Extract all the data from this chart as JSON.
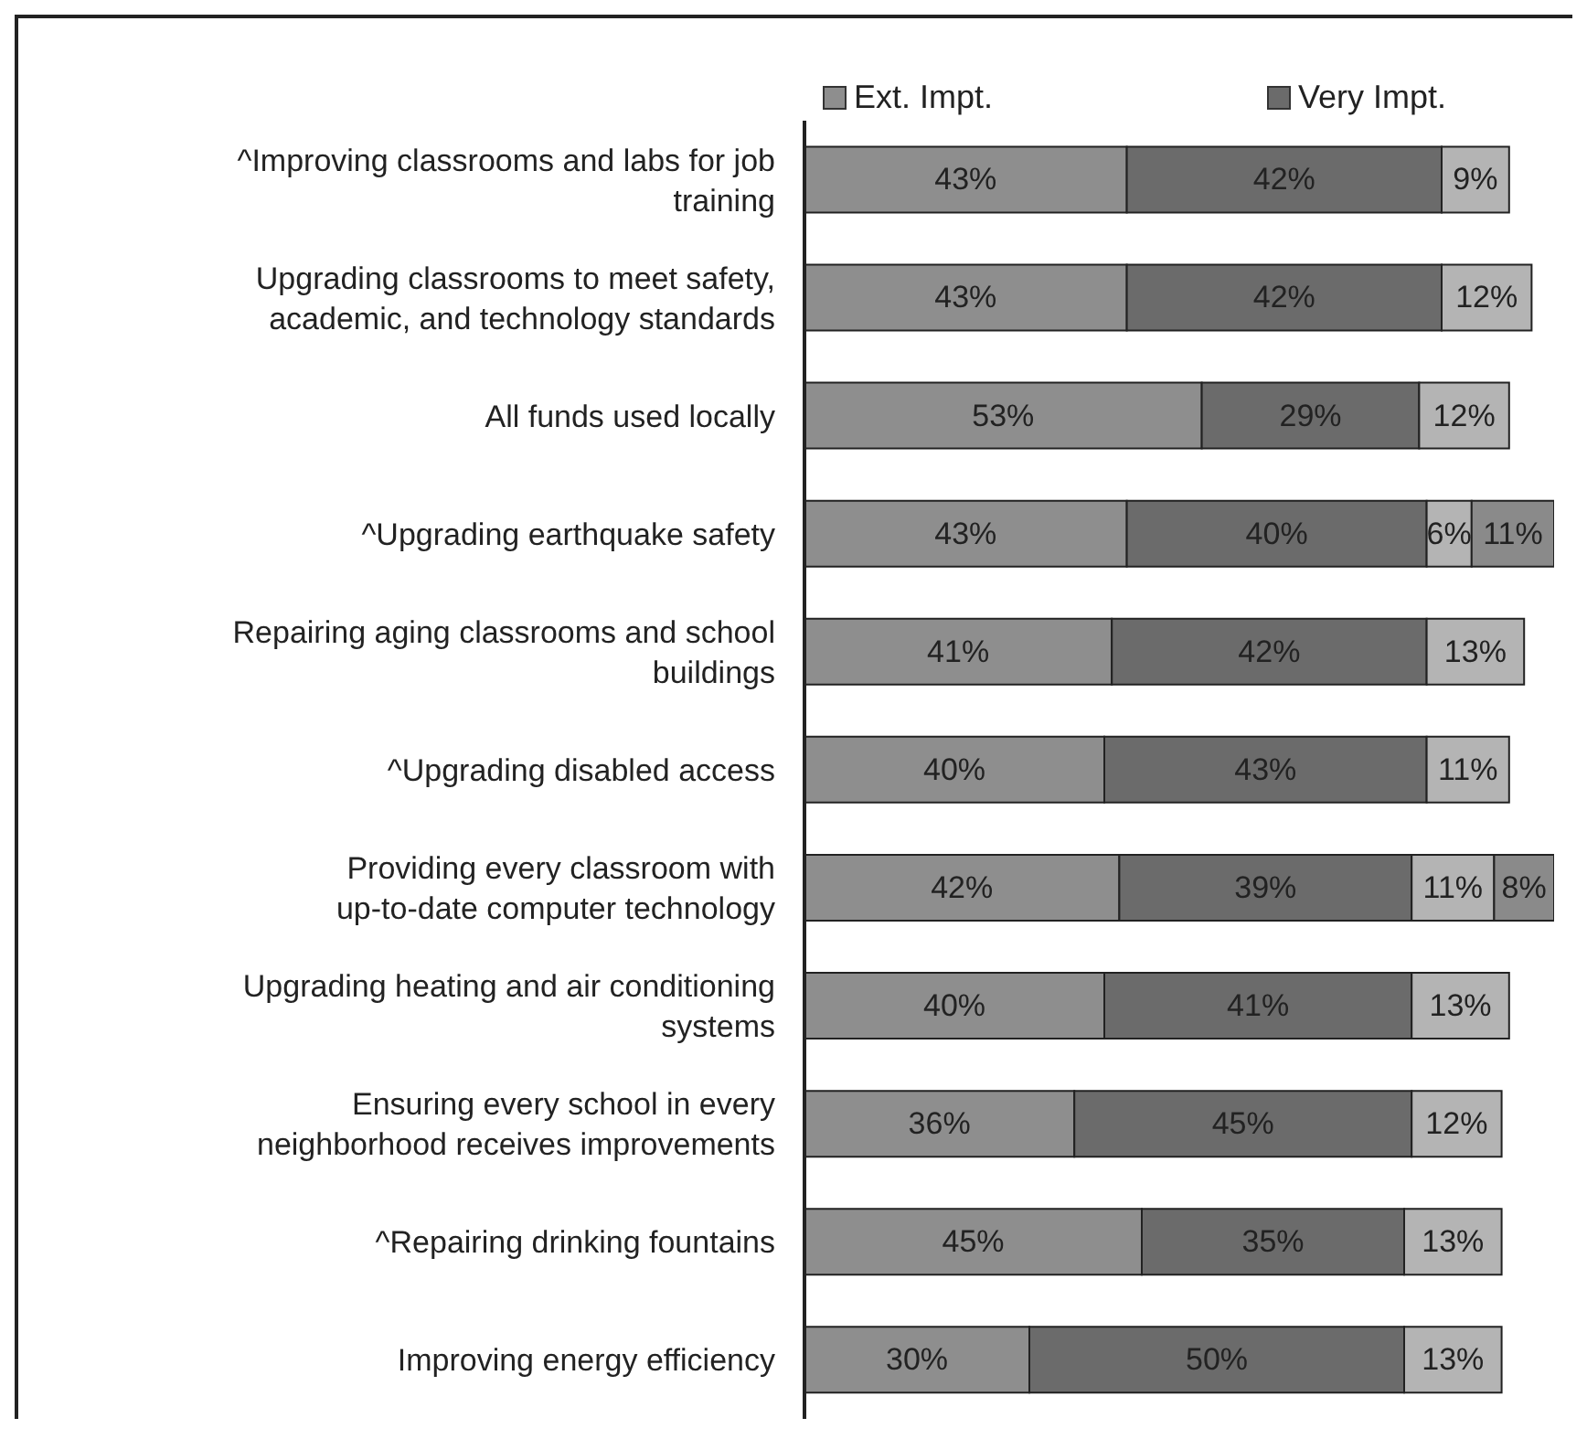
{
  "chart_data": {
    "type": "bar",
    "orientation": "horizontal",
    "stacked": true,
    "legend": "top",
    "tick_labels": "y",
    "xlim": [
      0,
      100
    ],
    "categories": [
      "^Improving classrooms and labs for job training",
      "Upgrading classrooms to meet safety, academic, and technology standards",
      "All funds used locally",
      "^Upgrading earthquake safety",
      "Repairing aging classrooms and school buildings",
      "^Upgrading disabled access",
      "Providing every classroom with up-to-date computer technology",
      "Upgrading heating and air conditioning systems",
      "Ensuring every school in every neighborhood receives improvements",
      "^Repairing drinking fountains",
      "Improving energy efficiency"
    ],
    "series": [
      {
        "name": "Ext. Impt.",
        "color": "#8e8e8e",
        "values": [
          43,
          43,
          53,
          43,
          41,
          40,
          42,
          40,
          36,
          45,
          30
        ],
        "value_labels": [
          "43%",
          "43%",
          "53%",
          "43%",
          "41%",
          "40%",
          "42%",
          "40%",
          "36%",
          "45%",
          "30%"
        ]
      },
      {
        "name": "Very Impt.",
        "color": "#6b6b6b",
        "values": [
          42,
          42,
          29,
          40,
          42,
          43,
          39,
          41,
          45,
          35,
          50
        ],
        "value_labels": [
          "42%",
          "42%",
          "29%",
          "40%",
          "42%",
          "43%",
          "39%",
          "41%",
          "45%",
          "35%",
          "50%"
        ]
      },
      {
        "color": "#b4b4b4",
        "values": [
          9,
          12,
          12,
          6,
          13,
          11,
          11,
          13,
          12,
          13,
          13
        ],
        "value_labels": [
          "9%",
          "12%",
          "12%",
          "6%",
          "13%",
          "11%",
          "11%",
          "13%",
          "12%",
          "13%",
          "13%"
        ]
      },
      {
        "color": "#8a8a8a",
        "values": [
          null,
          null,
          null,
          11,
          null,
          null,
          8,
          null,
          null,
          null,
          null
        ],
        "value_labels": [
          null,
          null,
          null,
          "11%",
          null,
          null,
          "8%",
          null,
          null,
          null,
          null
        ]
      }
    ]
  }
}
